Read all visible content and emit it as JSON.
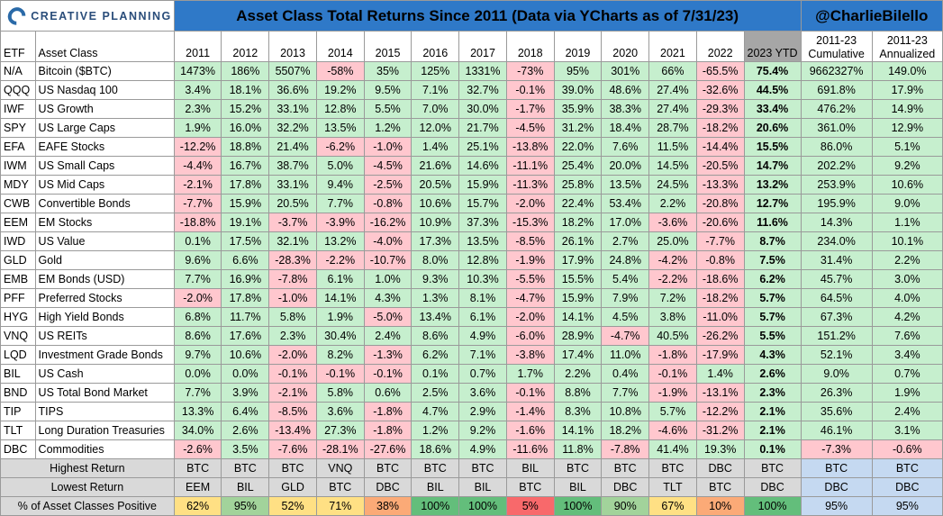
{
  "logo": {
    "text": "CREATIVE PLANNING"
  },
  "title": "Asset Class Total Returns Since 2011 (Data via YCharts as of 7/31/23)",
  "handle": "@CharlieBilello",
  "headers": {
    "etf": "ETF",
    "asset_class": "Asset Class",
    "years": [
      "2011",
      "2012",
      "2013",
      "2014",
      "2015",
      "2016",
      "2017",
      "2018",
      "2019",
      "2020",
      "2021",
      "2022",
      "2023 YTD"
    ],
    "cumulative_top": "2011-23",
    "cumulative_bottom": "Cumulative",
    "annualized_top": "2011-23",
    "annualized_bottom": "Annualized"
  },
  "rows": [
    {
      "etf": "N/A",
      "name": "Bitcoin ($BTC)",
      "vals": [
        "1473%",
        "186%",
        "5507%",
        "-58%",
        "35%",
        "125%",
        "1331%",
        "-73%",
        "95%",
        "301%",
        "66%",
        "-65.5%",
        "75.4%"
      ],
      "cum": "9662327%",
      "ann": "149.0%"
    },
    {
      "etf": "QQQ",
      "name": "US Nasdaq 100",
      "vals": [
        "3.4%",
        "18.1%",
        "36.6%",
        "19.2%",
        "9.5%",
        "7.1%",
        "32.7%",
        "-0.1%",
        "39.0%",
        "48.6%",
        "27.4%",
        "-32.6%",
        "44.5%"
      ],
      "cum": "691.8%",
      "ann": "17.9%"
    },
    {
      "etf": "IWF",
      "name": "US Growth",
      "vals": [
        "2.3%",
        "15.2%",
        "33.1%",
        "12.8%",
        "5.5%",
        "7.0%",
        "30.0%",
        "-1.7%",
        "35.9%",
        "38.3%",
        "27.4%",
        "-29.3%",
        "33.4%"
      ],
      "cum": "476.2%",
      "ann": "14.9%"
    },
    {
      "etf": "SPY",
      "name": "US Large Caps",
      "vals": [
        "1.9%",
        "16.0%",
        "32.2%",
        "13.5%",
        "1.2%",
        "12.0%",
        "21.7%",
        "-4.5%",
        "31.2%",
        "18.4%",
        "28.7%",
        "-18.2%",
        "20.6%"
      ],
      "cum": "361.0%",
      "ann": "12.9%"
    },
    {
      "etf": "EFA",
      "name": "EAFE Stocks",
      "vals": [
        "-12.2%",
        "18.8%",
        "21.4%",
        "-6.2%",
        "-1.0%",
        "1.4%",
        "25.1%",
        "-13.8%",
        "22.0%",
        "7.6%",
        "11.5%",
        "-14.4%",
        "15.5%"
      ],
      "cum": "86.0%",
      "ann": "5.1%"
    },
    {
      "etf": "IWM",
      "name": "US Small Caps",
      "vals": [
        "-4.4%",
        "16.7%",
        "38.7%",
        "5.0%",
        "-4.5%",
        "21.6%",
        "14.6%",
        "-11.1%",
        "25.4%",
        "20.0%",
        "14.5%",
        "-20.5%",
        "14.7%"
      ],
      "cum": "202.2%",
      "ann": "9.2%"
    },
    {
      "etf": "MDY",
      "name": "US Mid Caps",
      "vals": [
        "-2.1%",
        "17.8%",
        "33.1%",
        "9.4%",
        "-2.5%",
        "20.5%",
        "15.9%",
        "-11.3%",
        "25.8%",
        "13.5%",
        "24.5%",
        "-13.3%",
        "13.2%"
      ],
      "cum": "253.9%",
      "ann": "10.6%"
    },
    {
      "etf": "CWB",
      "name": "Convertible Bonds",
      "vals": [
        "-7.7%",
        "15.9%",
        "20.5%",
        "7.7%",
        "-0.8%",
        "10.6%",
        "15.7%",
        "-2.0%",
        "22.4%",
        "53.4%",
        "2.2%",
        "-20.8%",
        "12.7%"
      ],
      "cum": "195.9%",
      "ann": "9.0%"
    },
    {
      "etf": "EEM",
      "name": "EM Stocks",
      "vals": [
        "-18.8%",
        "19.1%",
        "-3.7%",
        "-3.9%",
        "-16.2%",
        "10.9%",
        "37.3%",
        "-15.3%",
        "18.2%",
        "17.0%",
        "-3.6%",
        "-20.6%",
        "11.6%"
      ],
      "cum": "14.3%",
      "ann": "1.1%"
    },
    {
      "etf": "IWD",
      "name": "US Value",
      "vals": [
        "0.1%",
        "17.5%",
        "32.1%",
        "13.2%",
        "-4.0%",
        "17.3%",
        "13.5%",
        "-8.5%",
        "26.1%",
        "2.7%",
        "25.0%",
        "-7.7%",
        "8.7%"
      ],
      "cum": "234.0%",
      "ann": "10.1%"
    },
    {
      "etf": "GLD",
      "name": "Gold",
      "vals": [
        "9.6%",
        "6.6%",
        "-28.3%",
        "-2.2%",
        "-10.7%",
        "8.0%",
        "12.8%",
        "-1.9%",
        "17.9%",
        "24.8%",
        "-4.2%",
        "-0.8%",
        "7.5%"
      ],
      "cum": "31.4%",
      "ann": "2.2%"
    },
    {
      "etf": "EMB",
      "name": "EM Bonds (USD)",
      "vals": [
        "7.7%",
        "16.9%",
        "-7.8%",
        "6.1%",
        "1.0%",
        "9.3%",
        "10.3%",
        "-5.5%",
        "15.5%",
        "5.4%",
        "-2.2%",
        "-18.6%",
        "6.2%"
      ],
      "cum": "45.7%",
      "ann": "3.0%"
    },
    {
      "etf": "PFF",
      "name": "Preferred Stocks",
      "vals": [
        "-2.0%",
        "17.8%",
        "-1.0%",
        "14.1%",
        "4.3%",
        "1.3%",
        "8.1%",
        "-4.7%",
        "15.9%",
        "7.9%",
        "7.2%",
        "-18.2%",
        "5.7%"
      ],
      "cum": "64.5%",
      "ann": "4.0%"
    },
    {
      "etf": "HYG",
      "name": "High Yield Bonds",
      "vals": [
        "6.8%",
        "11.7%",
        "5.8%",
        "1.9%",
        "-5.0%",
        "13.4%",
        "6.1%",
        "-2.0%",
        "14.1%",
        "4.5%",
        "3.8%",
        "-11.0%",
        "5.7%"
      ],
      "cum": "67.3%",
      "ann": "4.2%"
    },
    {
      "etf": "VNQ",
      "name": "US REITs",
      "vals": [
        "8.6%",
        "17.6%",
        "2.3%",
        "30.4%",
        "2.4%",
        "8.6%",
        "4.9%",
        "-6.0%",
        "28.9%",
        "-4.7%",
        "40.5%",
        "-26.2%",
        "5.5%"
      ],
      "cum": "151.2%",
      "ann": "7.6%"
    },
    {
      "etf": "LQD",
      "name": "Investment Grade Bonds",
      "vals": [
        "9.7%",
        "10.6%",
        "-2.0%",
        "8.2%",
        "-1.3%",
        "6.2%",
        "7.1%",
        "-3.8%",
        "17.4%",
        "11.0%",
        "-1.8%",
        "-17.9%",
        "4.3%"
      ],
      "cum": "52.1%",
      "ann": "3.4%"
    },
    {
      "etf": "BIL",
      "name": "US Cash",
      "vals": [
        "0.0%",
        "0.0%",
        "-0.1%",
        "-0.1%",
        "-0.1%",
        "0.1%",
        "0.7%",
        "1.7%",
        "2.2%",
        "0.4%",
        "-0.1%",
        "1.4%",
        "2.6%"
      ],
      "cum": "9.0%",
      "ann": "0.7%"
    },
    {
      "etf": "BND",
      "name": "US Total Bond Market",
      "vals": [
        "7.7%",
        "3.9%",
        "-2.1%",
        "5.8%",
        "0.6%",
        "2.5%",
        "3.6%",
        "-0.1%",
        "8.8%",
        "7.7%",
        "-1.9%",
        "-13.1%",
        "2.3%"
      ],
      "cum": "26.3%",
      "ann": "1.9%"
    },
    {
      "etf": "TIP",
      "name": "TIPS",
      "vals": [
        "13.3%",
        "6.4%",
        "-8.5%",
        "3.6%",
        "-1.8%",
        "4.7%",
        "2.9%",
        "-1.4%",
        "8.3%",
        "10.8%",
        "5.7%",
        "-12.2%",
        "2.1%"
      ],
      "cum": "35.6%",
      "ann": "2.4%"
    },
    {
      "etf": "TLT",
      "name": "Long Duration Treasuries",
      "vals": [
        "34.0%",
        "2.6%",
        "-13.4%",
        "27.3%",
        "-1.8%",
        "1.2%",
        "9.2%",
        "-1.6%",
        "14.1%",
        "18.2%",
        "-4.6%",
        "-31.2%",
        "2.1%"
      ],
      "cum": "46.1%",
      "ann": "3.1%"
    },
    {
      "etf": "DBC",
      "name": "Commodities",
      "vals": [
        "-2.6%",
        "3.5%",
        "-7.6%",
        "-28.1%",
        "-27.6%",
        "18.6%",
        "4.9%",
        "-11.6%",
        "11.8%",
        "-7.8%",
        "41.4%",
        "19.3%",
        "0.1%"
      ],
      "cum": "-7.3%",
      "ann": "-0.6%"
    }
  ],
  "summary": {
    "highest": {
      "label": "Highest Return",
      "vals": [
        "BTC",
        "BTC",
        "BTC",
        "VNQ",
        "BTC",
        "BTC",
        "BTC",
        "BIL",
        "BTC",
        "BTC",
        "BTC",
        "DBC",
        "BTC"
      ],
      "cum": "BTC",
      "ann": "BTC"
    },
    "lowest": {
      "label": "Lowest Return",
      "vals": [
        "EEM",
        "BIL",
        "GLD",
        "BTC",
        "DBC",
        "BIL",
        "BIL",
        "BTC",
        "BIL",
        "DBC",
        "TLT",
        "BTC",
        "DBC"
      ],
      "cum": "DBC",
      "ann": "DBC"
    },
    "positive": {
      "label": "% of Asset Classes Positive",
      "vals": [
        "62%",
        "95%",
        "52%",
        "71%",
        "38%",
        "100%",
        "100%",
        "5%",
        "100%",
        "90%",
        "67%",
        "10%",
        "100%"
      ],
      "cum": "95%",
      "ann": "95%"
    }
  },
  "colors": {
    "positive": "#c6efce",
    "negative": "#ffc7ce",
    "title_bar": "#2f79c8",
    "summary_gray": "#d9d9d9",
    "summary_blue": "#c5d9f1"
  }
}
